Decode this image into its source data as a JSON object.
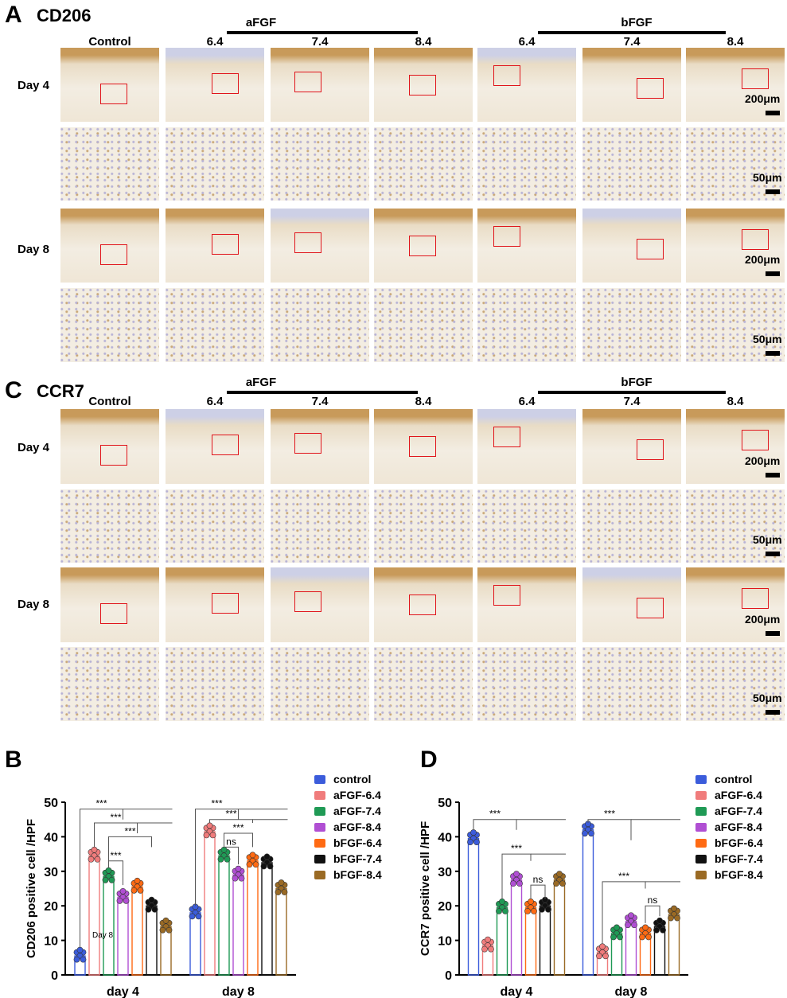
{
  "figure": {
    "panelA": {
      "letter": "A",
      "title": "CD206",
      "groups": [
        {
          "label": "aFGF"
        },
        {
          "label": "bFGF"
        }
      ],
      "columns": [
        "Control",
        "6.4",
        "7.4",
        "8.4",
        "6.4",
        "7.4",
        "8.4"
      ],
      "rows": [
        "Day 4",
        "Day 8"
      ],
      "scalebars": [
        "200μm",
        "50μm",
        "200μm",
        "50μm"
      ]
    },
    "panelC": {
      "letter": "C",
      "title": "CCR7",
      "groups": [
        {
          "label": "aFGF"
        },
        {
          "label": "bFGF"
        }
      ],
      "columns": [
        "Control",
        "6.4",
        "7.4",
        "8.4",
        "6.4",
        "7.4",
        "8.4"
      ],
      "rows": [
        "Day 4",
        "Day 8"
      ],
      "scalebars": [
        "200μm",
        "50μm",
        "200μm",
        "50μm"
      ]
    },
    "colors": {
      "tissue_light": "#f3ede2",
      "tissue_brown": "#c89a5a",
      "tissue_purple": "#cdd0e6",
      "roi_red": "#e0141b"
    }
  },
  "chart_data": [
    {
      "panel": "B",
      "type": "bar",
      "ylabel": "CD206 positive cell /HPF",
      "xlabel": "",
      "categories": [
        "day 4",
        "day 8"
      ],
      "ylim": [
        0,
        50
      ],
      "yticks": [
        0,
        10,
        20,
        30,
        40,
        50
      ],
      "inner_label": "Day 8",
      "series": [
        {
          "name": "control",
          "color": "#3b5cdb",
          "values": [
            5.5,
            18
          ]
        },
        {
          "name": "aFGF-6.4",
          "color": "#f07c7c",
          "values": [
            34.5,
            41.5
          ]
        },
        {
          "name": "aFGF-7.4",
          "color": "#1f9a55",
          "values": [
            28.5,
            34.5
          ]
        },
        {
          "name": "aFGF-8.4",
          "color": "#b04fd3",
          "values": [
            22.5,
            29
          ]
        },
        {
          "name": "bFGF-6.4",
          "color": "#ff6a13",
          "values": [
            25.5,
            33
          ]
        },
        {
          "name": "bFGF-7.4",
          "color": "#111111",
          "values": [
            20,
            32.5
          ]
        },
        {
          "name": "bFGF-8.4",
          "color": "#9a6a24",
          "values": [
            14,
            25
          ]
        }
      ],
      "annotations": [
        "***",
        "***",
        "***",
        "***",
        "***",
        "***",
        "***",
        "ns"
      ]
    },
    {
      "panel": "D",
      "type": "bar",
      "ylabel": "CCR7 positive cell /HPF",
      "xlabel": "",
      "categories": [
        "day 4",
        "day 8"
      ],
      "ylim": [
        0,
        50
      ],
      "yticks": [
        0,
        10,
        20,
        30,
        40,
        50
      ],
      "series": [
        {
          "name": "control",
          "color": "#3b5cdb",
          "values": [
            39.5,
            42
          ]
        },
        {
          "name": "aFGF-6.4",
          "color": "#f07c7c",
          "values": [
            8.5,
            6.5
          ]
        },
        {
          "name": "aFGF-7.4",
          "color": "#1f9a55",
          "values": [
            19.5,
            12
          ]
        },
        {
          "name": "aFGF-8.4",
          "color": "#b04fd3",
          "values": [
            27.5,
            15.5
          ]
        },
        {
          "name": "bFGF-6.4",
          "color": "#ff6a13",
          "values": [
            19.5,
            12
          ]
        },
        {
          "name": "bFGF-7.4",
          "color": "#111111",
          "values": [
            20,
            14
          ]
        },
        {
          "name": "bFGF-8.4",
          "color": "#9a6a24",
          "values": [
            27.5,
            17.5
          ]
        }
      ],
      "annotations": [
        "***",
        "***",
        "ns",
        "***",
        "***",
        "ns"
      ]
    }
  ],
  "panelB": {
    "letter": "B"
  },
  "panelD": {
    "letter": "D"
  }
}
